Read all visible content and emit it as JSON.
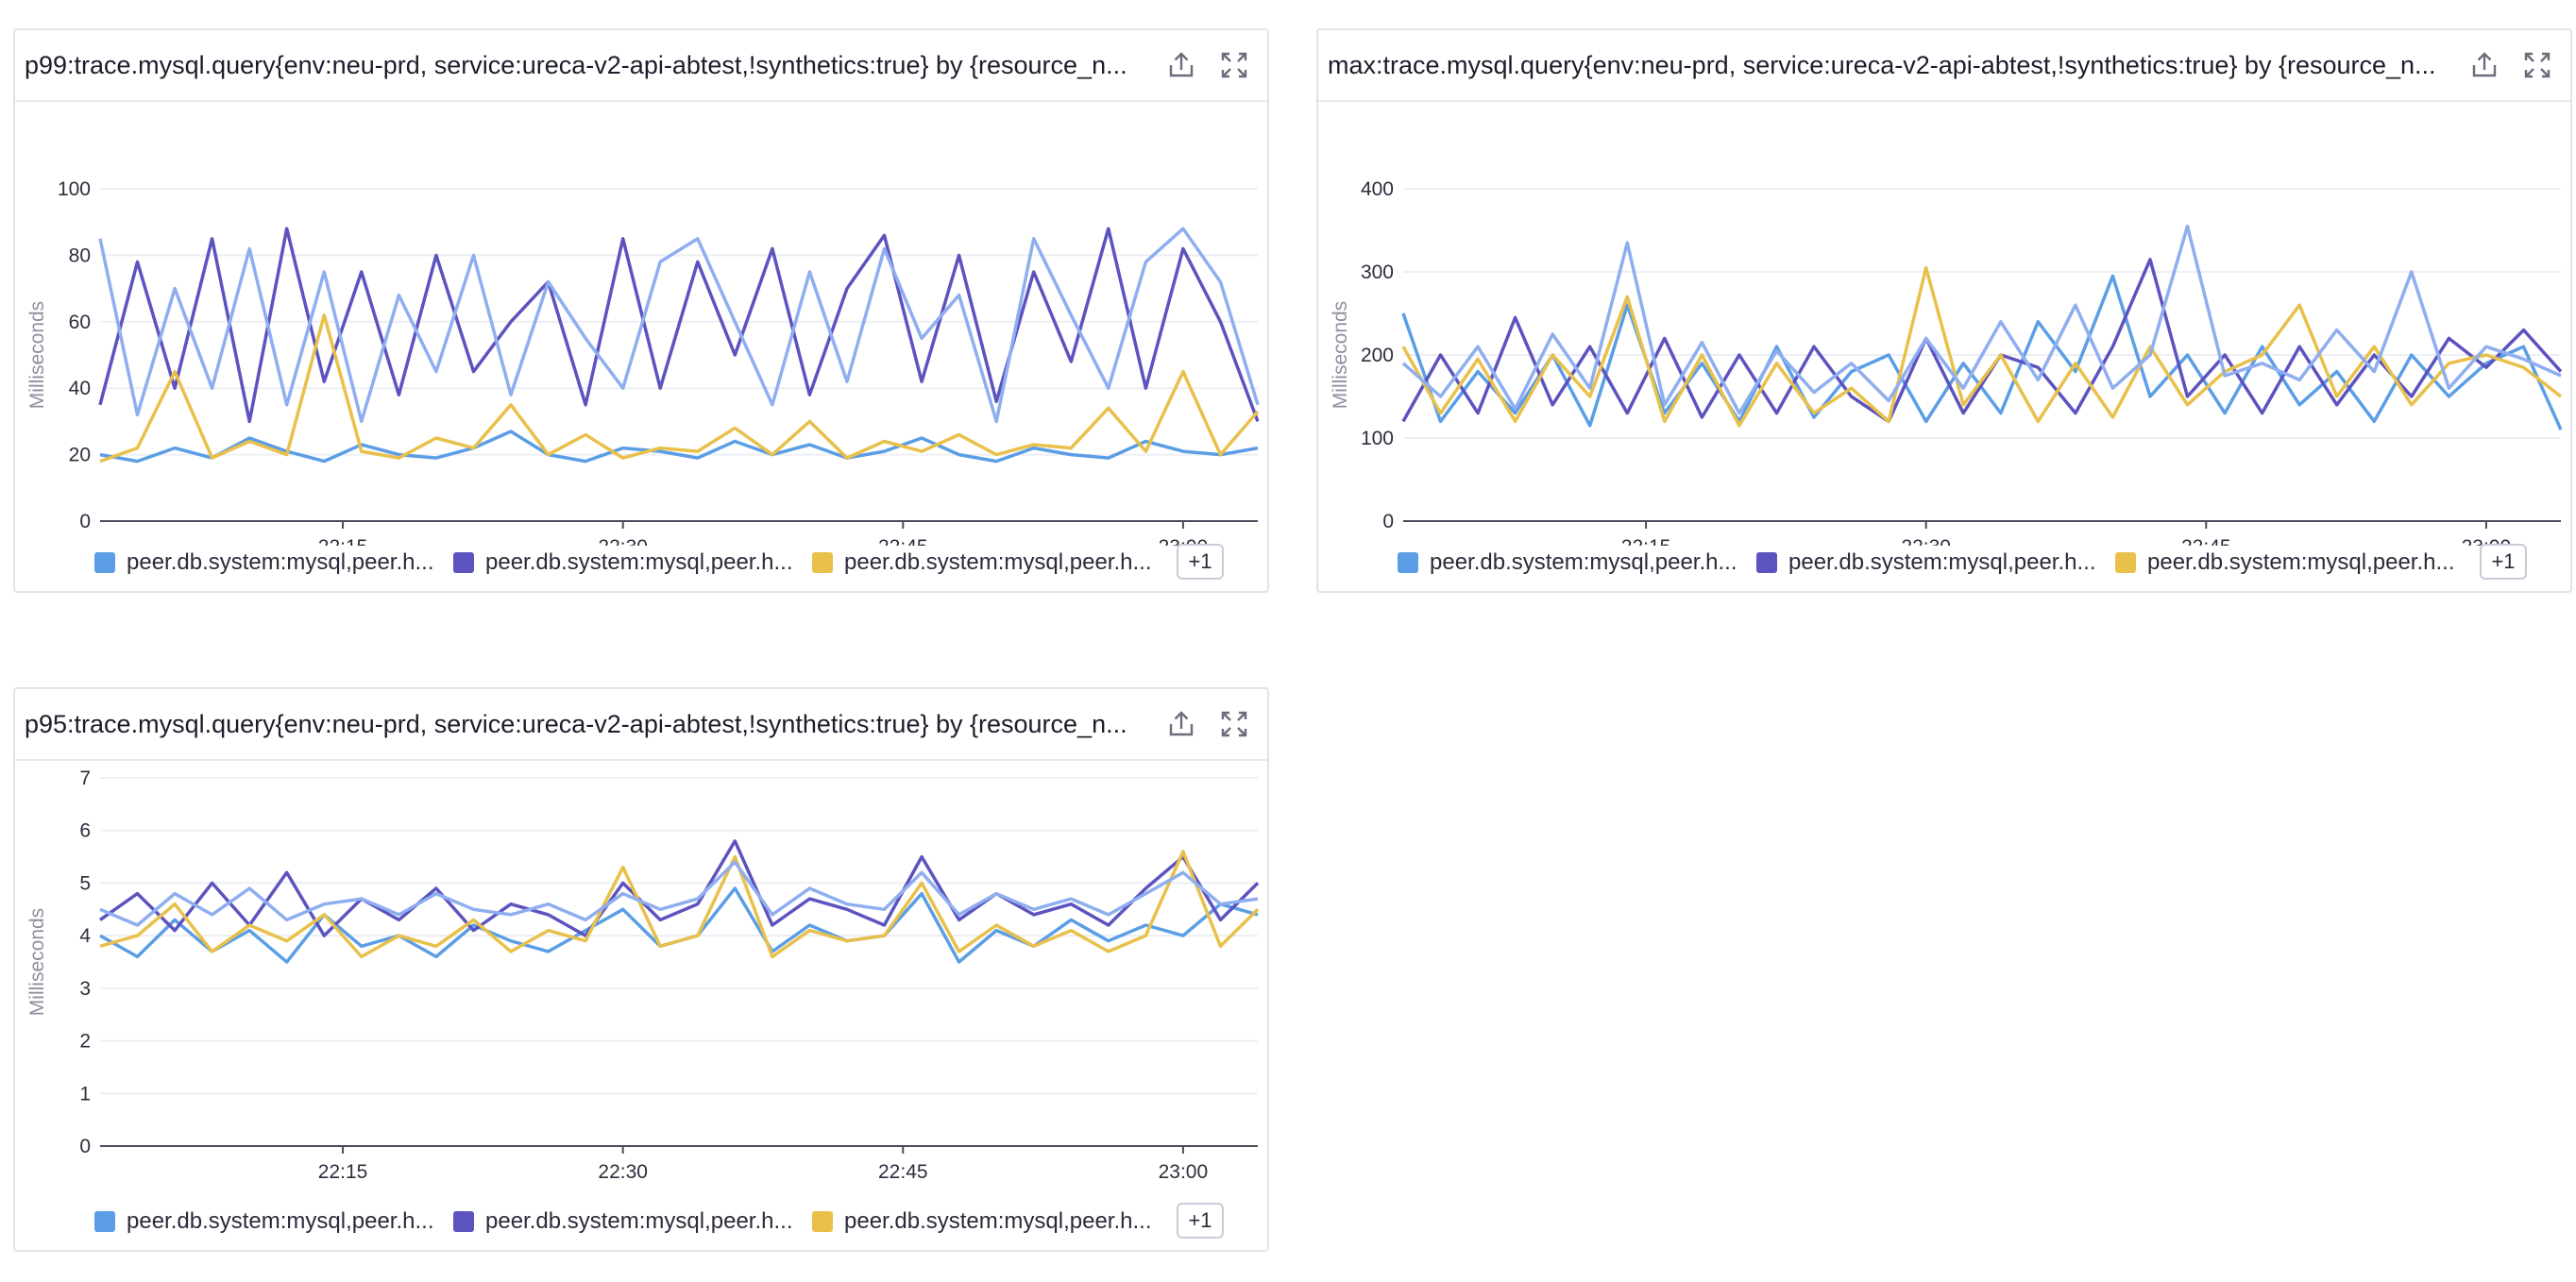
{
  "colors": {
    "series": [
      "#5b9ee6",
      "#5c53bf",
      "#e8c04a",
      "#8eaef0"
    ],
    "grid": "#eeeff4",
    "axis": "#4b4c5c",
    "icon": "#6b6d7d"
  },
  "icons": {
    "export": "export-icon",
    "expand": "expand-icon"
  },
  "widgets": [
    {
      "title": "p99:trace.mysql.query{env:neu-prd, service:ureca-v2-api-abtest,!synthetics:true} by {resource_n...",
      "legend": [
        "peer.db.system:mysql,peer.h...",
        "peer.db.system:mysql,peer.h...",
        "peer.db.system:mysql,peer.h..."
      ],
      "legend_more": "+1"
    },
    {
      "title": "max:trace.mysql.query{env:neu-prd, service:ureca-v2-api-abtest,!synthetics:true} by {resource_n...",
      "legend": [
        "peer.db.system:mysql,peer.h...",
        "peer.db.system:mysql,peer.h...",
        "peer.db.system:mysql,peer.h..."
      ],
      "legend_more": "+1"
    },
    {
      "title": "p95:trace.mysql.query{env:neu-prd, service:ureca-v2-api-abtest,!synthetics:true} by {resource_n...",
      "legend": [
        "peer.db.system:mysql,peer.h...",
        "peer.db.system:mysql,peer.h...",
        "peer.db.system:mysql,peer.h..."
      ],
      "legend_more": "+1"
    }
  ],
  "chart_data": [
    {
      "type": "line",
      "ylabel": "Milliseconds",
      "ylim": [
        0,
        100
      ],
      "yticks": [
        0,
        20,
        40,
        60,
        80,
        100
      ],
      "xlim": [
        "22:02",
        "23:04"
      ],
      "xticks": [
        "22:15",
        "22:30",
        "22:45",
        "23:00"
      ],
      "x": [
        "22:02",
        "22:04",
        "22:06",
        "22:08",
        "22:10",
        "22:12",
        "22:14",
        "22:16",
        "22:18",
        "22:20",
        "22:22",
        "22:24",
        "22:26",
        "22:28",
        "22:30",
        "22:32",
        "22:34",
        "22:36",
        "22:38",
        "22:40",
        "22:42",
        "22:44",
        "22:46",
        "22:48",
        "22:50",
        "22:52",
        "22:54",
        "22:56",
        "22:58",
        "23:00",
        "23:02",
        "23:04"
      ],
      "series": [
        {
          "values": [
            20,
            18,
            22,
            19,
            25,
            21,
            18,
            23,
            20,
            19,
            22,
            27,
            20,
            18,
            22,
            21,
            19,
            24,
            20,
            23,
            19,
            21,
            25,
            20,
            18,
            22,
            20,
            19,
            24,
            21,
            20,
            22
          ]
        },
        {
          "values": [
            35,
            78,
            40,
            85,
            30,
            88,
            42,
            75,
            38,
            80,
            45,
            60,
            72,
            35,
            85,
            40,
            78,
            50,
            82,
            38,
            70,
            86,
            42,
            80,
            36,
            75,
            48,
            88,
            40,
            82,
            60,
            30
          ]
        },
        {
          "values": [
            18,
            22,
            45,
            19,
            24,
            20,
            62,
            21,
            19,
            25,
            22,
            35,
            20,
            26,
            19,
            22,
            21,
            28,
            20,
            30,
            19,
            24,
            21,
            26,
            20,
            23,
            22,
            34,
            21,
            45,
            20,
            33
          ]
        },
        {
          "values": [
            85,
            32,
            70,
            40,
            82,
            35,
            75,
            30,
            68,
            45,
            80,
            38,
            72,
            55,
            40,
            78,
            85,
            60,
            35,
            75,
            42,
            82,
            55,
            68,
            30,
            85,
            62,
            40,
            78,
            88,
            72,
            35
          ]
        }
      ]
    },
    {
      "type": "line",
      "ylabel": "Milliseconds",
      "ylim": [
        0,
        400
      ],
      "yticks": [
        0,
        100,
        200,
        300,
        400
      ],
      "xlim": [
        "22:02",
        "23:04"
      ],
      "xticks": [
        "22:15",
        "22:30",
        "22:45",
        "23:00"
      ],
      "x": [
        "22:02",
        "22:04",
        "22:06",
        "22:08",
        "22:10",
        "22:12",
        "22:14",
        "22:16",
        "22:18",
        "22:20",
        "22:22",
        "22:24",
        "22:26",
        "22:28",
        "22:30",
        "22:32",
        "22:34",
        "22:36",
        "22:38",
        "22:40",
        "22:42",
        "22:44",
        "22:46",
        "22:48",
        "22:50",
        "22:52",
        "22:54",
        "22:56",
        "22:58",
        "23:00",
        "23:02",
        "23:04"
      ],
      "series": [
        {
          "values": [
            250,
            120,
            180,
            130,
            200,
            115,
            260,
            130,
            190,
            120,
            210,
            125,
            180,
            200,
            120,
            190,
            130,
            240,
            180,
            295,
            150,
            200,
            130,
            210,
            140,
            180,
            120,
            200,
            150,
            190,
            210,
            110
          ]
        },
        {
          "values": [
            120,
            200,
            130,
            245,
            140,
            210,
            130,
            220,
            125,
            200,
            130,
            210,
            150,
            120,
            220,
            130,
            200,
            185,
            130,
            210,
            315,
            150,
            200,
            130,
            210,
            140,
            200,
            150,
            220,
            185,
            230,
            180
          ]
        },
        {
          "values": [
            210,
            130,
            195,
            120,
            200,
            150,
            270,
            120,
            200,
            115,
            190,
            130,
            160,
            120,
            305,
            140,
            200,
            120,
            190,
            125,
            210,
            140,
            180,
            200,
            260,
            150,
            210,
            140,
            190,
            200,
            185,
            150
          ]
        },
        {
          "values": [
            190,
            150,
            210,
            135,
            225,
            160,
            335,
            140,
            215,
            130,
            205,
            155,
            190,
            145,
            220,
            160,
            240,
            170,
            260,
            160,
            200,
            355,
            175,
            190,
            170,
            230,
            180,
            300,
            160,
            210,
            195,
            175
          ]
        }
      ]
    },
    {
      "type": "line",
      "ylabel": "Milliseconds",
      "ylim": [
        0,
        7
      ],
      "yticks": [
        0,
        1,
        2,
        3,
        4,
        5,
        6,
        7
      ],
      "xlim": [
        "22:02",
        "23:04"
      ],
      "xticks": [
        "22:15",
        "22:30",
        "22:45",
        "23:00"
      ],
      "x": [
        "22:02",
        "22:04",
        "22:06",
        "22:08",
        "22:10",
        "22:12",
        "22:14",
        "22:16",
        "22:18",
        "22:20",
        "22:22",
        "22:24",
        "22:26",
        "22:28",
        "22:30",
        "22:32",
        "22:34",
        "22:36",
        "22:38",
        "22:40",
        "22:42",
        "22:44",
        "22:46",
        "22:48",
        "22:50",
        "22:52",
        "22:54",
        "22:56",
        "22:58",
        "23:00",
        "23:02",
        "23:04"
      ],
      "series": [
        {
          "values": [
            4.0,
            3.6,
            4.3,
            3.7,
            4.1,
            3.5,
            4.4,
            3.8,
            4.0,
            3.6,
            4.2,
            3.9,
            3.7,
            4.1,
            4.5,
            3.8,
            4.0,
            4.9,
            3.7,
            4.2,
            3.9,
            4.0,
            4.8,
            3.5,
            4.1,
            3.8,
            4.3,
            3.9,
            4.2,
            4.0,
            4.6,
            4.4
          ]
        },
        {
          "values": [
            4.3,
            4.8,
            4.1,
            5.0,
            4.2,
            5.2,
            4.0,
            4.7,
            4.3,
            4.9,
            4.1,
            4.6,
            4.4,
            4.0,
            5.0,
            4.3,
            4.6,
            5.8,
            4.2,
            4.7,
            4.5,
            4.2,
            5.5,
            4.3,
            4.8,
            4.4,
            4.6,
            4.2,
            4.9,
            5.5,
            4.3,
            5.0
          ]
        },
        {
          "values": [
            3.8,
            4.0,
            4.6,
            3.7,
            4.2,
            3.9,
            4.4,
            3.6,
            4.0,
            3.8,
            4.3,
            3.7,
            4.1,
            3.9,
            5.3,
            3.8,
            4.0,
            5.5,
            3.6,
            4.1,
            3.9,
            4.0,
            5.0,
            3.7,
            4.2,
            3.8,
            4.1,
            3.7,
            4.0,
            5.6,
            3.8,
            4.5
          ]
        },
        {
          "values": [
            4.5,
            4.2,
            4.8,
            4.4,
            4.9,
            4.3,
            4.6,
            4.7,
            4.4,
            4.8,
            4.5,
            4.4,
            4.6,
            4.3,
            4.8,
            4.5,
            4.7,
            5.4,
            4.4,
            4.9,
            4.6,
            4.5,
            5.2,
            4.4,
            4.8,
            4.5,
            4.7,
            4.4,
            4.8,
            5.2,
            4.6,
            4.7
          ]
        }
      ]
    }
  ]
}
